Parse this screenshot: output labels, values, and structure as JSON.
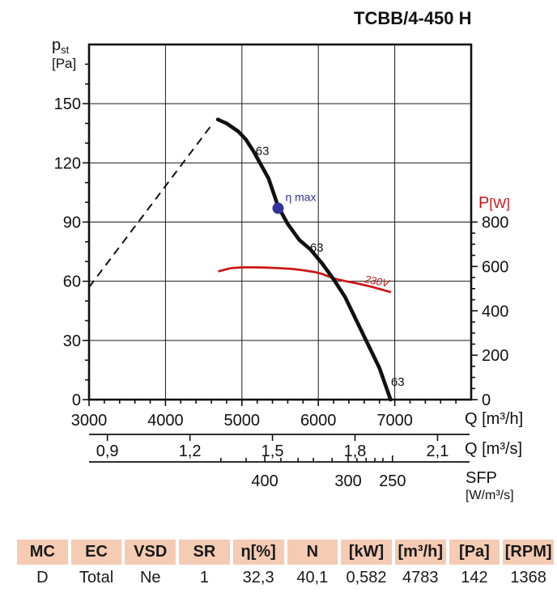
{
  "title": "TCBB/4-450 H",
  "chart_data": {
    "type": "line",
    "title": "TCBB/4-450 H",
    "y_left": {
      "symbol": "p",
      "symbol_sub": "st",
      "unit": "[Pa]",
      "min": 0,
      "max": 180,
      "major_ticks": [
        0,
        30,
        60,
        90,
        120,
        150
      ],
      "minor_step": 10,
      "minor_max": 170,
      "gridlines": [
        30,
        60,
        90,
        120,
        150
      ]
    },
    "y_right": {
      "symbol": "P",
      "unit": "[W]",
      "color": "#cc1414",
      "min": 0,
      "max": 1600,
      "major_ticks": [
        0,
        200,
        400,
        600,
        800
      ],
      "minor_step": 50,
      "minor_max": 800
    },
    "x_bottom": {
      "label": "Q [m³/h]",
      "min": 3000,
      "max": 8000,
      "major_ticks": [
        3000,
        4000,
        5000,
        6000,
        7000
      ],
      "minor_step": 200,
      "minor_max": 7800,
      "gridlines": [
        4000,
        5000,
        6000,
        7000
      ]
    },
    "x_mps": {
      "label": "Q [m³/s]",
      "ticks": [
        {
          "label": "0,9",
          "value": 0.9
        },
        {
          "label": "1,2",
          "value": 1.2
        },
        {
          "label": "1,5",
          "value": 1.5
        },
        {
          "label": "1,8",
          "value": 1.8
        },
        {
          "label": "2,1",
          "value": 2.1
        }
      ]
    },
    "x_sfp": {
      "label_line1": "SFP",
      "label_line2": "[W/m³/s]",
      "ticks": [
        {
          "label": "400",
          "q": 5300
        },
        {
          "label": "300",
          "q": 6390
        },
        {
          "label": "250",
          "q": 6970
        }
      ],
      "minor_q": [
        4725,
        5055,
        5510,
        5735,
        5935,
        6180,
        6505,
        6625,
        6740,
        6845
      ]
    },
    "series": {
      "system_line": {
        "style": "dashed",
        "color": "#111111",
        "points": [
          [
            3000,
            57
          ],
          [
            4600,
            139
          ]
        ]
      },
      "fan_curve": {
        "color": "#111111",
        "points": [
          [
            4685,
            142
          ],
          [
            4800,
            140
          ],
          [
            4950,
            136
          ],
          [
            5050,
            132
          ],
          [
            5150,
            126
          ],
          [
            5250,
            119
          ],
          [
            5350,
            112
          ],
          [
            5473,
            98
          ],
          [
            5600,
            89
          ],
          [
            5750,
            81
          ],
          [
            5900,
            76
          ],
          [
            6050,
            69
          ],
          [
            6200,
            61
          ],
          [
            6350,
            52
          ],
          [
            6500,
            40
          ],
          [
            6650,
            28
          ],
          [
            6800,
            16
          ],
          [
            6945,
            0
          ]
        ]
      },
      "power_curve_230v": {
        "color": "#cc1414",
        "points_watt": [
          [
            4690,
            578
          ],
          [
            4850,
            592
          ],
          [
            5000,
            596
          ],
          [
            5150,
            596
          ],
          [
            5300,
            595
          ],
          [
            5500,
            592
          ],
          [
            5650,
            589
          ],
          [
            5800,
            583
          ],
          [
            5950,
            575
          ],
          [
            6050,
            566
          ],
          [
            6200,
            546
          ],
          [
            6350,
            534
          ],
          [
            6500,
            524
          ],
          [
            6700,
            508
          ],
          [
            6950,
            484
          ]
        ]
      }
    },
    "marker_eta_max": {
      "q": 5473,
      "pa": 97,
      "label": "η max",
      "color": "#333399"
    },
    "annotations": [
      {
        "text": "63",
        "q": 5180,
        "pa": 124
      },
      {
        "text": "63",
        "q": 5890,
        "pa": 75
      },
      {
        "text": "63",
        "q": 6950,
        "pa": 7
      },
      {
        "text": "230V",
        "q": 6600,
        "watt": 528,
        "color": "#cc1414",
        "rotate": 11
      }
    ]
  },
  "table": {
    "header_bg": "#f5cbb4",
    "columns": [
      "MC",
      "EC",
      "VSD",
      "SR",
      "η[%]",
      "N",
      "[kW]",
      "[m³/h]",
      "[Pa]",
      "[RPM]"
    ],
    "values": [
      "D",
      "Total",
      "Ne",
      "1",
      "32,3",
      "40,1",
      "0,582",
      "4783",
      "142",
      "1368"
    ]
  }
}
